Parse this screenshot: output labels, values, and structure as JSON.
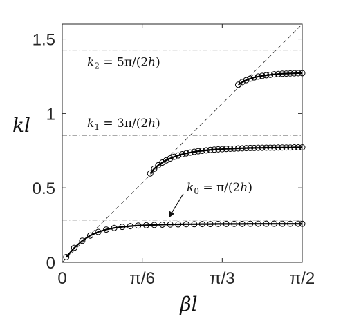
{
  "chart_data": {
    "type": "line",
    "xlabel": "βl",
    "ylabel": "kl",
    "xlim": [
      0,
      1.5708
    ],
    "ylim": [
      0,
      1.6
    ],
    "x_ticks": [
      {
        "value": 0,
        "label": "0"
      },
      {
        "value": 0.5236,
        "label": "π/6"
      },
      {
        "value": 1.0472,
        "label": "π/3"
      },
      {
        "value": 1.5708,
        "label": "π/2"
      }
    ],
    "y_ticks": [
      {
        "value": 0,
        "label": "0"
      },
      {
        "value": 0.5,
        "label": "0.5"
      },
      {
        "value": 1,
        "label": "1"
      },
      {
        "value": 1.5,
        "label": "1.5"
      }
    ],
    "grid": false,
    "reference_line": {
      "style": "dashed",
      "from": [
        0,
        0
      ],
      "to": [
        1.5708,
        1.6
      ]
    },
    "cutoffs": [
      {
        "y": 0.284,
        "label": "k0 = π/(2h)",
        "label_parts": [
          "k",
          "0",
          " = π/(2",
          "h",
          ")"
        ]
      },
      {
        "y": 0.853,
        "label": "k1 = 3π/(2h)",
        "label_parts": [
          "k",
          "1",
          " = 3π/(2",
          "h",
          ")"
        ]
      },
      {
        "y": 1.425,
        "label": "k2 = 5π/(2h)",
        "label_parts": [
          "k",
          "2",
          " = 5π/(2",
          "h",
          ")"
        ]
      }
    ],
    "series": [
      {
        "x": [
          0.0262,
          0.0785,
          0.1309,
          0.1833,
          0.2356,
          0.288,
          0.3403,
          0.3927,
          0.4451,
          0.4974,
          0.5498,
          0.6021,
          0.6545,
          0.7069,
          0.7592,
          0.8116,
          0.8639,
          0.9163,
          0.9687,
          1.021,
          1.0734,
          1.1257,
          1.1781,
          1.2305,
          1.2828,
          1.3352,
          1.3875,
          1.4399,
          1.4923,
          1.5446,
          1.5708
        ],
        "y": [
          0.035,
          0.097,
          0.145,
          0.18,
          0.204,
          0.22,
          0.231,
          0.238,
          0.243,
          0.247,
          0.249,
          0.251,
          0.253,
          0.254,
          0.255,
          0.256,
          0.256,
          0.257,
          0.257,
          0.258,
          0.258,
          0.258,
          0.258,
          0.259,
          0.259,
          0.259,
          0.259,
          0.259,
          0.259,
          0.259,
          0.259
        ]
      },
      {
        "x": [
          0.576,
          0.6021,
          0.6283,
          0.6545,
          0.6807,
          0.7069,
          0.733,
          0.7592,
          0.7854,
          0.8116,
          0.8378,
          0.8639,
          0.8901,
          0.9163,
          0.9425,
          0.9687,
          0.9948,
          1.021,
          1.0472,
          1.0734,
          1.0996,
          1.1257,
          1.1519,
          1.1781,
          1.2043,
          1.2305,
          1.2566,
          1.2828,
          1.309,
          1.3352,
          1.3614,
          1.3875,
          1.4137,
          1.4399,
          1.4661,
          1.4923,
          1.5184,
          1.5446,
          1.5708
        ],
        "y": [
          0.597,
          0.629,
          0.652,
          0.67,
          0.685,
          0.698,
          0.709,
          0.718,
          0.726,
          0.732,
          0.737,
          0.742,
          0.746,
          0.749,
          0.752,
          0.755,
          0.757,
          0.759,
          0.76,
          0.762,
          0.763,
          0.764,
          0.765,
          0.766,
          0.767,
          0.768,
          0.768,
          0.769,
          0.769,
          0.77,
          0.77,
          0.77,
          0.771,
          0.771,
          0.771,
          0.771,
          0.772,
          0.772,
          0.772
        ]
      },
      {
        "x": [
          1.1519,
          1.1781,
          1.2043,
          1.2305,
          1.2566,
          1.2828,
          1.309,
          1.3352,
          1.3614,
          1.3875,
          1.4137,
          1.4399,
          1.4661,
          1.4923,
          1.5184,
          1.5446,
          1.5708
        ],
        "y": [
          1.193,
          1.211,
          1.224,
          1.234,
          1.242,
          1.248,
          1.253,
          1.257,
          1.26,
          1.263,
          1.265,
          1.267,
          1.268,
          1.269,
          1.27,
          1.271,
          1.271
        ]
      }
    ]
  }
}
